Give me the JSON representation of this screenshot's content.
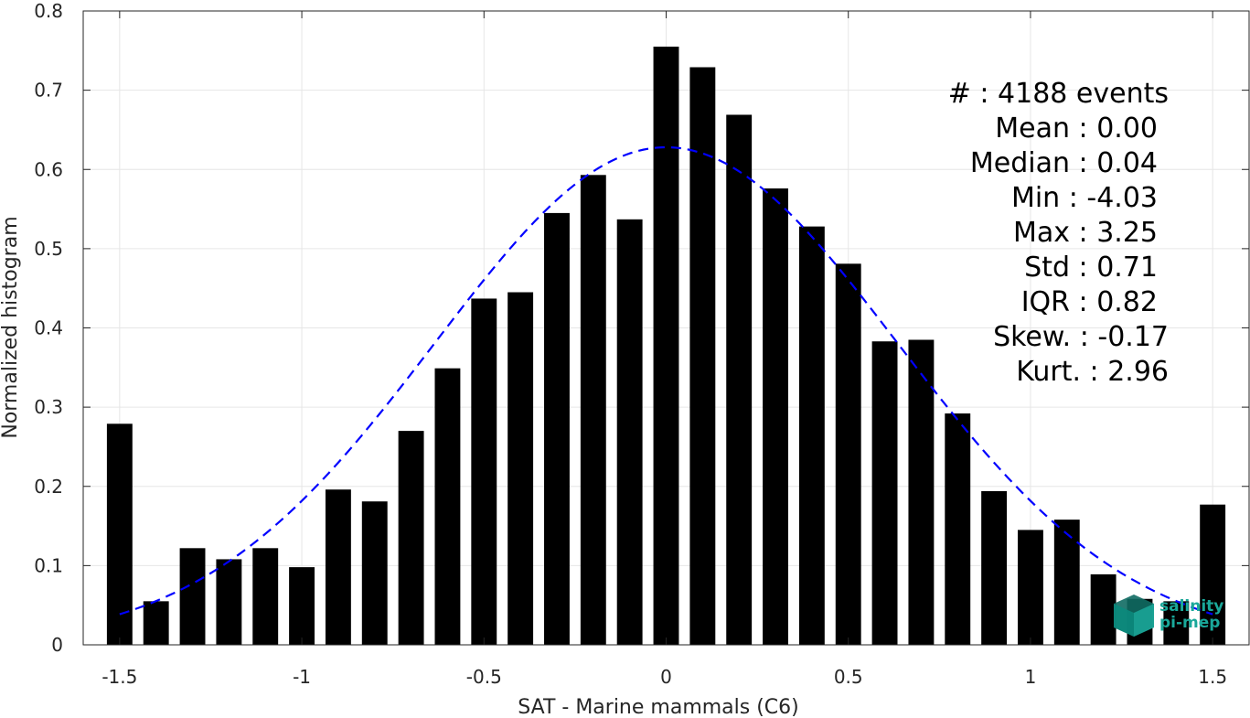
{
  "chart_data": {
    "type": "bar",
    "xlabel": "SAT - Marine mammals (C6)",
    "ylabel": "Normalized histogram",
    "xlim": [
      -1.6,
      1.6
    ],
    "ylim": [
      0,
      0.8
    ],
    "xticks": [
      "-1.5",
      "-1",
      "-0.5",
      "0",
      "0.5",
      "1",
      "1.5"
    ],
    "xtick_values": [
      -1.5,
      -1,
      -0.5,
      0,
      0.5,
      1,
      1.5
    ],
    "yticks": [
      "0",
      "0.1",
      "0.2",
      "0.3",
      "0.4",
      "0.5",
      "0.6",
      "0.7",
      "0.8"
    ],
    "ytick_values": [
      0,
      0.1,
      0.2,
      0.3,
      0.4,
      0.5,
      0.6,
      0.7,
      0.8
    ],
    "grid": true,
    "bar_color": "#000000",
    "bin_centers": [
      -1.5,
      -1.4,
      -1.3,
      -1.2,
      -1.1,
      -1.0,
      -0.9,
      -0.8,
      -0.7,
      -0.6,
      -0.5,
      -0.4,
      -0.3,
      -0.2,
      -0.1,
      0.0,
      0.1,
      0.2,
      0.3,
      0.4,
      0.5,
      0.6,
      0.7,
      0.8,
      0.9,
      1.0,
      1.1,
      1.2,
      1.3,
      1.4,
      1.5
    ],
    "values": [
      0.279,
      0.055,
      0.122,
      0.108,
      0.122,
      0.098,
      0.196,
      0.181,
      0.27,
      0.349,
      0.437,
      0.445,
      0.545,
      0.593,
      0.537,
      0.755,
      0.729,
      0.669,
      0.576,
      0.528,
      0.481,
      0.383,
      0.385,
      0.292,
      0.194,
      0.145,
      0.158,
      0.089,
      0.058,
      0.055,
      0.177
    ],
    "fit_curve": {
      "type": "gaussian",
      "mean": 0.0,
      "std": 0.635,
      "peak": 0.628,
      "color": "#0000ff",
      "style": "dashed",
      "x_range": [
        -1.5,
        1.5
      ]
    },
    "stats": [
      "#  : 4188 events",
      "Mean : 0.00",
      "Median : 0.04",
      "Min : -4.03",
      "Max : 3.25",
      "Std : 0.71",
      "IQR : 0.82",
      "Skew. : -0.17",
      "Kurt. : 2.96"
    ]
  },
  "logo": {
    "line1": "salinity",
    "line2": "pi-mep",
    "color": "#1aa89a"
  }
}
